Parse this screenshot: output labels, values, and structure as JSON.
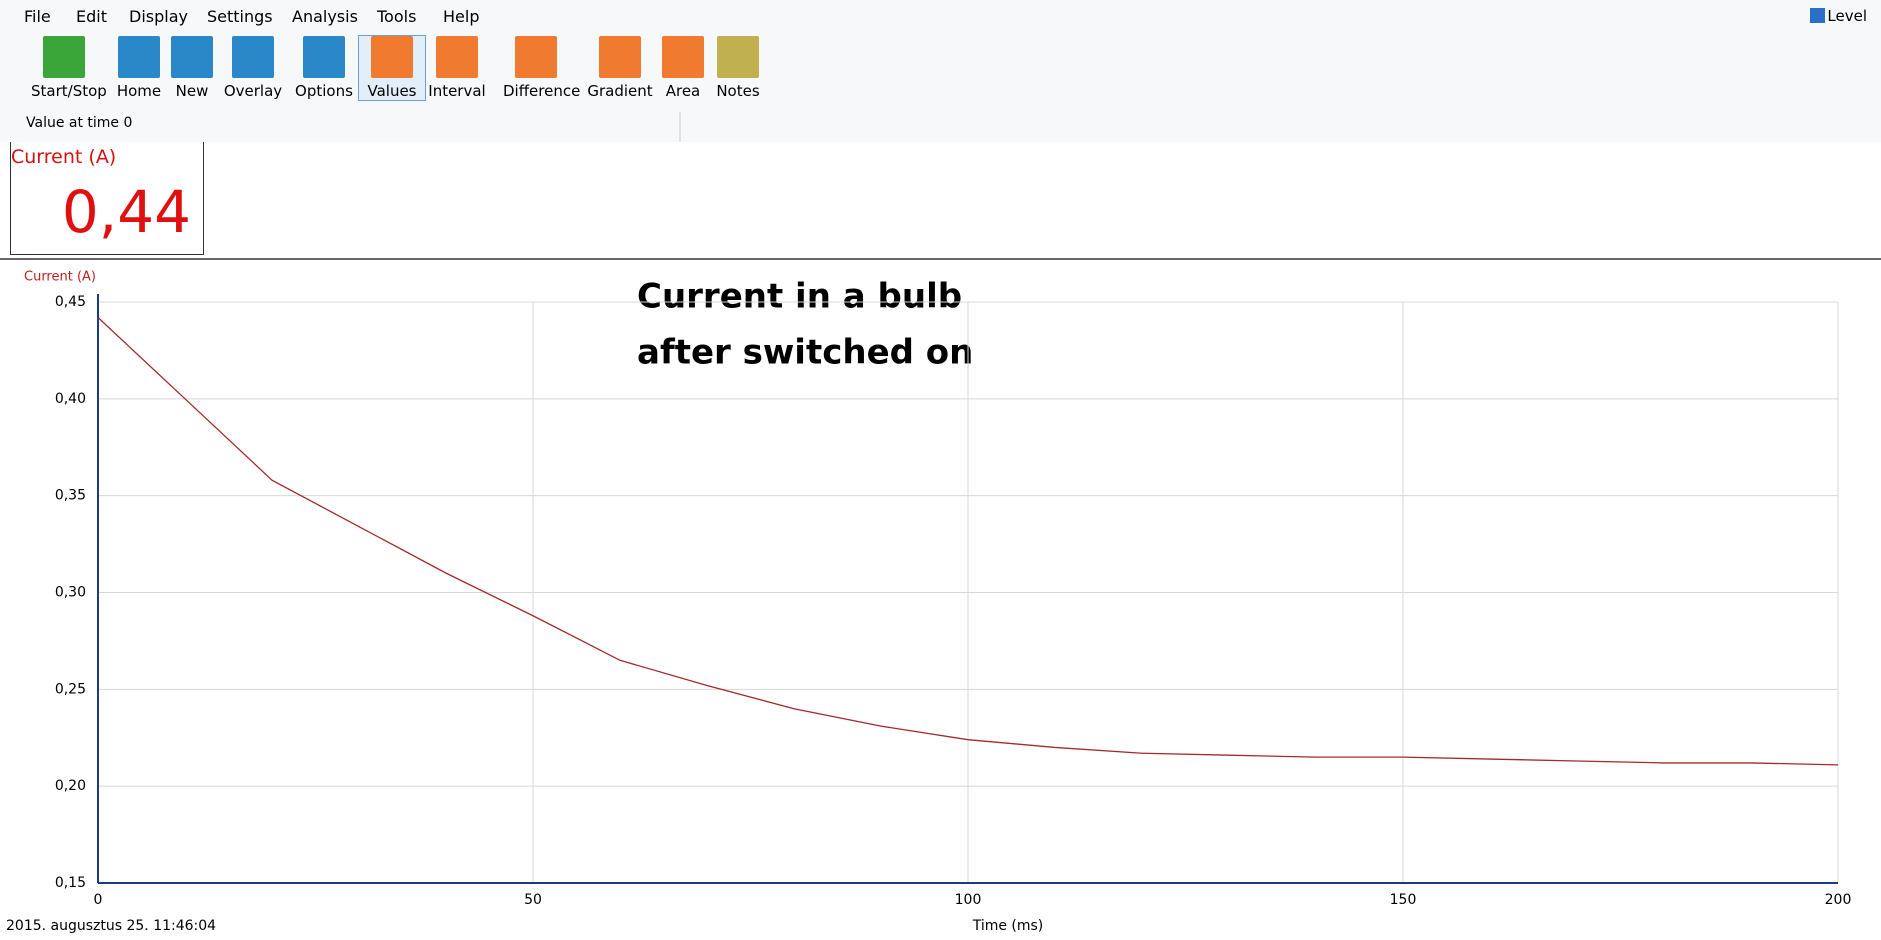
{
  "menu": [
    "File",
    "Edit",
    "Display",
    "Settings",
    "Analysis",
    "Tools",
    "Help"
  ],
  "level": "Level",
  "toolbar": [
    "Start/Stop",
    "Home",
    "New",
    "Overlay",
    "Options",
    "Values",
    "Interval",
    "Difference",
    "Gradient",
    "Area",
    "Notes"
  ],
  "status": "Value at time 0",
  "meter": {
    "label": "Current (A)",
    "value": "0,44"
  },
  "timestamp": "2015. augusztus 25.  11:46:04",
  "chart_data": {
    "type": "line",
    "annotation": [
      "Current in a bulb",
      "after switched on"
    ],
    "y_label": "Current (A)",
    "x_label": "Time (ms)",
    "x": [
      0,
      10,
      20,
      30,
      40,
      50,
      60,
      70,
      80,
      90,
      100,
      110,
      120,
      130,
      140,
      150,
      160,
      170,
      180,
      190,
      200
    ],
    "series": [
      {
        "color": "#a52a2a",
        "values": [
          0.442,
          0.4,
          0.358,
          0.334,
          0.31,
          0.288,
          0.265,
          0.252,
          0.24,
          0.231,
          0.224,
          0.22,
          0.217,
          0.216,
          0.215,
          0.215,
          0.214,
          0.213,
          0.212,
          0.212,
          0.211
        ]
      }
    ],
    "xlim": [
      0,
      200
    ],
    "xticks": [
      0,
      50,
      100,
      150,
      200
    ],
    "ylim": [
      0.15,
      0.45
    ],
    "yticks": [
      {
        "value": 0.15,
        "label": "0,15"
      },
      {
        "value": 0.2,
        "label": "0,20"
      },
      {
        "value": 0.25,
        "label": "0,25"
      },
      {
        "value": 0.3,
        "label": "0,30"
      },
      {
        "value": 0.35,
        "label": "0,35"
      },
      {
        "value": 0.4,
        "label": "0,40"
      },
      {
        "value": 0.45,
        "label": "0,45"
      }
    ],
    "grid": true
  }
}
